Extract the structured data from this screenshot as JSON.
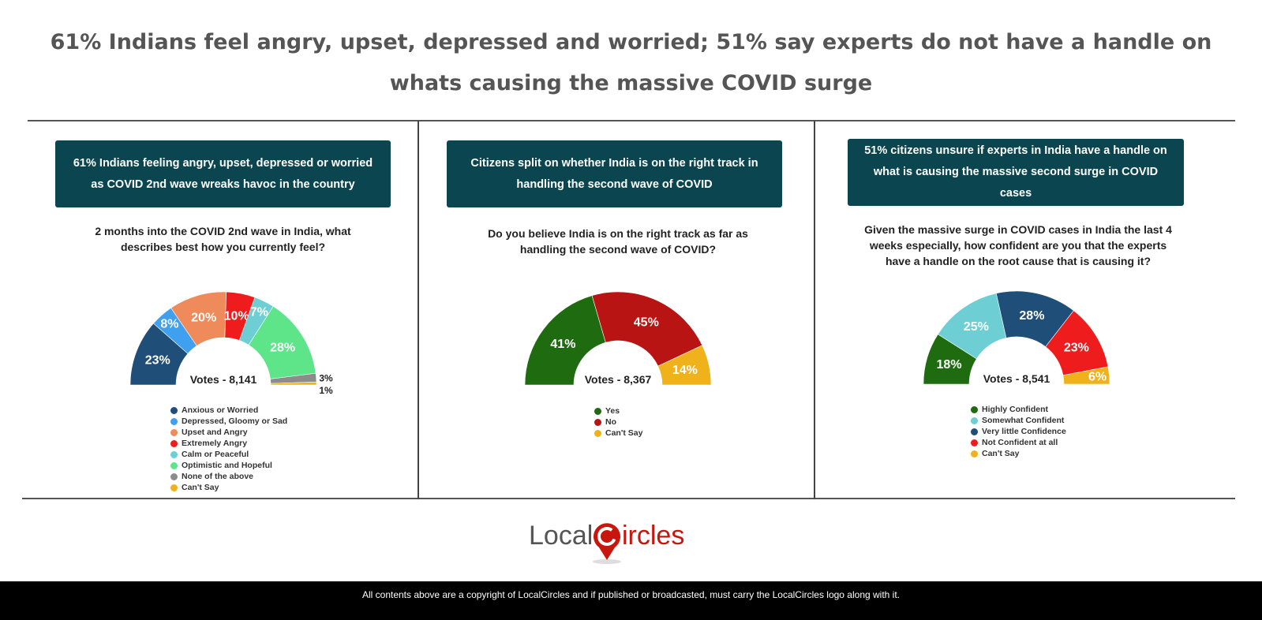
{
  "title": "61% Indians feel angry, upset, depressed and worried; 51% say experts do not have a handle on whats causing the massive COVID surge",
  "panels": [
    {
      "header": "61% Indians feeling angry, upset, depressed or worried as COVID 2nd wave wreaks havoc in the country",
      "question": "2 months into the COVID 2nd wave in India, what describes best how you currently feel?"
    },
    {
      "header": "Citizens split on whether India is on the right track in handling the second wave of COVID",
      "question": "Do you believe India is on the right track as far as handling the second wave of COVID?"
    },
    {
      "header": "51% citizens unsure if experts in India have a handle on what is causing the massive second surge in COVID cases",
      "question": "Given the massive surge in COVID cases in India the last 4 weeks especially, how confident are you that the experts have a handle on the root cause that is causing it?"
    }
  ],
  "chart_data": [
    {
      "type": "pie",
      "shape": "semi-donut",
      "center_label": "Votes - 8,141",
      "legend_placement": "bottom",
      "categories": [
        "Anxious or Worried",
        "Depressed, Gloomy or Sad",
        "Upset and Angry",
        "Extremely Angry",
        "Calm or Peaceful",
        "Optimistic and Hopeful",
        "None of the above",
        "Can't Say"
      ],
      "values": [
        23,
        8,
        20,
        10,
        7,
        28,
        3,
        1
      ],
      "labels": [
        "23%",
        "8%",
        "20%",
        "10%",
        "7%",
        "28%",
        "3%",
        "1%"
      ],
      "colors": [
        "#1f4e79",
        "#3fa0f0",
        "#ef8a5a",
        "#ee1c1c",
        "#6dcfd3",
        "#5ee58a",
        "#8c8c8c",
        "#f0b21a"
      ]
    },
    {
      "type": "pie",
      "shape": "semi-donut",
      "center_label": "Votes - 8,367",
      "legend_placement": "bottom",
      "categories": [
        "Yes",
        "No",
        "Can't Say"
      ],
      "values": [
        41,
        45,
        14
      ],
      "labels": [
        "41%",
        "45%",
        "14%"
      ],
      "colors": [
        "#1e6b10",
        "#b81414",
        "#f0b21a"
      ]
    },
    {
      "type": "pie",
      "shape": "semi-donut",
      "center_label": "Votes - 8,541",
      "legend_placement": "bottom",
      "categories": [
        "Highly Confident",
        "Somewhat Confident",
        "Very little Confidence",
        "Not Confident at all",
        "Can't Say"
      ],
      "values": [
        18,
        25,
        28,
        23,
        6
      ],
      "labels": [
        "18%",
        "25%",
        "28%",
        "23%",
        "6%"
      ],
      "colors": [
        "#1e6b10",
        "#6dcfd3",
        "#1f4e79",
        "#ee1c1c",
        "#f0b21a"
      ]
    }
  ],
  "logo": {
    "text": "LocalCircles"
  },
  "footer": "All contents above are a copyright of LocalCircles and if published or broadcasted, must carry the LocalCircles logo along with it."
}
